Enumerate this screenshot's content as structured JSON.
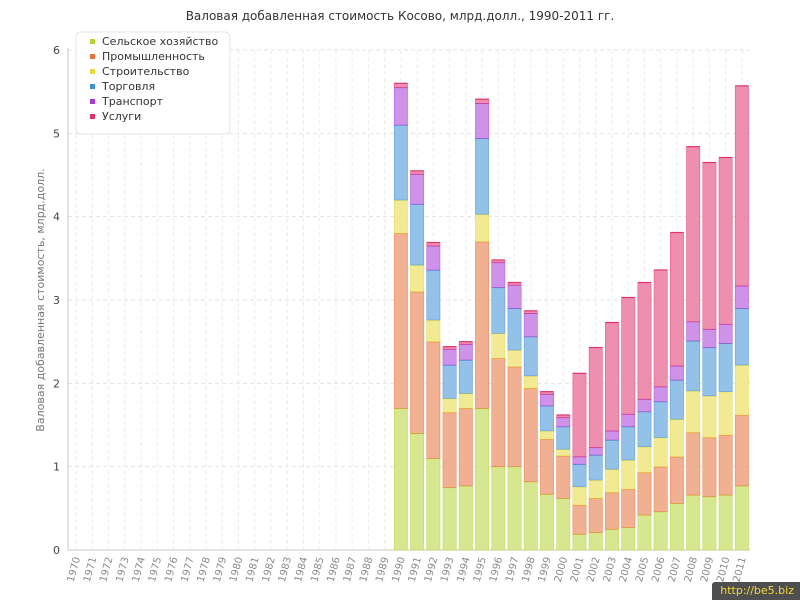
{
  "chart_data": {
    "type": "bar",
    "stacked": true,
    "title": "Валовая добавленная стоимость Косово, млрд.долл., 1990-2011 гг.",
    "ylabel": "Валовая добавленная стоимость, млрд.долл.",
    "xlabel": "",
    "ylim": [
      0,
      6
    ],
    "yticks": [
      0,
      1,
      2,
      3,
      4,
      5,
      6
    ],
    "grid": true,
    "legend_position": "top-left",
    "categories": [
      "1970",
      "1971",
      "1972",
      "1973",
      "1974",
      "1975",
      "1976",
      "1977",
      "1978",
      "1979",
      "1980",
      "1981",
      "1982",
      "1983",
      "1984",
      "1985",
      "1986",
      "1987",
      "1988",
      "1989",
      "1990",
      "1991",
      "1992",
      "1993",
      "1994",
      "1995",
      "1996",
      "1997",
      "1998",
      "1999",
      "2000",
      "2001",
      "2002",
      "2003",
      "2004",
      "2005",
      "2006",
      "2007",
      "2008",
      "2009",
      "2010",
      "2011"
    ],
    "series": [
      {
        "name": "Сельское хозяйство",
        "color": "#b5d334",
        "values": [
          0,
          0,
          0,
          0,
          0,
          0,
          0,
          0,
          0,
          0,
          0,
          0,
          0,
          0,
          0,
          0,
          0,
          0,
          0,
          0,
          1.7,
          1.4,
          1.1,
          0.75,
          0.77,
          1.7,
          1.0,
          1.0,
          0.82,
          0.67,
          0.62,
          0.19,
          0.21,
          0.25,
          0.27,
          0.42,
          0.46,
          0.56,
          0.66,
          0.64,
          0.66,
          0.77
        ]
      },
      {
        "name": "Промышленность",
        "color": "#e8703a",
        "values": [
          0,
          0,
          0,
          0,
          0,
          0,
          0,
          0,
          0,
          0,
          0,
          0,
          0,
          0,
          0,
          0,
          0,
          0,
          0,
          0,
          2.1,
          1.7,
          1.4,
          0.9,
          0.93,
          2.0,
          1.3,
          1.2,
          1.12,
          0.66,
          0.51,
          0.35,
          0.41,
          0.44,
          0.46,
          0.51,
          0.54,
          0.56,
          0.75,
          0.71,
          0.72,
          0.85
        ]
      },
      {
        "name": "Строительство",
        "color": "#e6d93a",
        "values": [
          0,
          0,
          0,
          0,
          0,
          0,
          0,
          0,
          0,
          0,
          0,
          0,
          0,
          0,
          0,
          0,
          0,
          0,
          0,
          0,
          0.4,
          0.32,
          0.26,
          0.17,
          0.18,
          0.33,
          0.3,
          0.2,
          0.15,
          0.1,
          0.08,
          0.22,
          0.22,
          0.28,
          0.35,
          0.31,
          0.35,
          0.45,
          0.5,
          0.5,
          0.52,
          0.6
        ]
      },
      {
        "name": "Торговля",
        "color": "#3d8fd6",
        "values": [
          0,
          0,
          0,
          0,
          0,
          0,
          0,
          0,
          0,
          0,
          0,
          0,
          0,
          0,
          0,
          0,
          0,
          0,
          0,
          0,
          0.9,
          0.73,
          0.6,
          0.4,
          0.4,
          0.91,
          0.55,
          0.5,
          0.47,
          0.3,
          0.27,
          0.27,
          0.3,
          0.35,
          0.4,
          0.42,
          0.43,
          0.47,
          0.6,
          0.58,
          0.58,
          0.68
        ]
      },
      {
        "name": "Транспорт",
        "color": "#a63ad6",
        "values": [
          0,
          0,
          0,
          0,
          0,
          0,
          0,
          0,
          0,
          0,
          0,
          0,
          0,
          0,
          0,
          0,
          0,
          0,
          0,
          0,
          0.45,
          0.36,
          0.29,
          0.19,
          0.19,
          0.42,
          0.3,
          0.28,
          0.28,
          0.14,
          0.11,
          0.09,
          0.09,
          0.11,
          0.15,
          0.15,
          0.18,
          0.17,
          0.23,
          0.22,
          0.23,
          0.27
        ]
      },
      {
        "name": "Услуги",
        "color": "#e0336e",
        "values": [
          0,
          0,
          0,
          0,
          0,
          0,
          0,
          0,
          0,
          0,
          0,
          0,
          0,
          0,
          0,
          0,
          0,
          0,
          0,
          0,
          0.05,
          0.04,
          0.04,
          0.03,
          0.03,
          0.05,
          0.03,
          0.03,
          0.03,
          0.03,
          0.03,
          1.0,
          1.2,
          1.3,
          1.4,
          1.4,
          1.4,
          1.6,
          2.1,
          2.0,
          2.0,
          2.4
        ]
      }
    ]
  },
  "watermark": "http://be5.biz"
}
